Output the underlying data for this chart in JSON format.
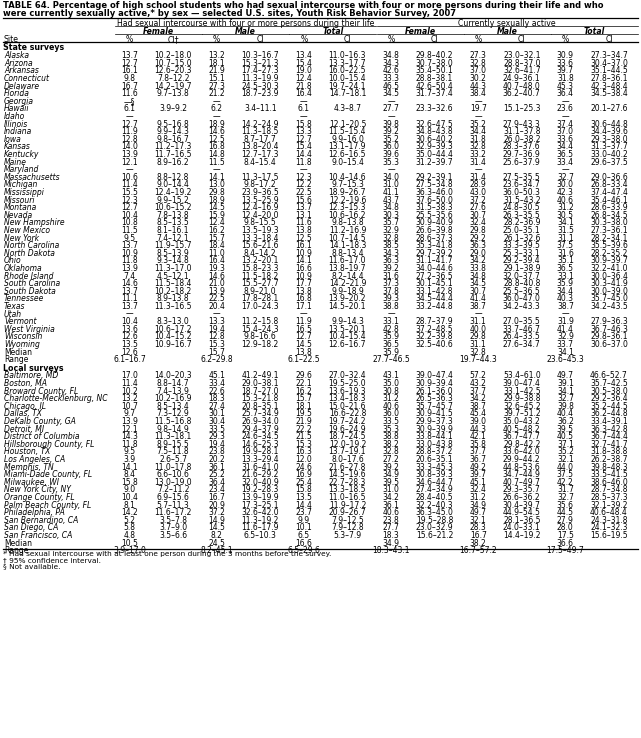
{
  "title_line1": "TABLE 64. Percentage of high school students who had sexual intercourse with four or more persons during their life and who",
  "title_line2": "were currently sexually active,* by sex — selected U.S. sites, Youth Risk Behavior Survey, 2007",
  "header1": "Had sexual intercourse with four or more persons during their life",
  "header2": "Currently sexually active",
  "col_headers": [
    "Female",
    "Male",
    "Total",
    "Female",
    "Male",
    "Total"
  ],
  "sub_headers": [
    "%",
    "CI†",
    "%",
    "CI",
    "%",
    "CI",
    "%",
    "CI",
    "%",
    "CI",
    "%",
    "CI"
  ],
  "site_col": "Site",
  "section1": "State surveys",
  "state_rows": [
    [
      "Alaska",
      "13.7",
      "10.2–18.0",
      "13.2",
      "10.3–16.7",
      "13.4",
      "11.0–16.3",
      "34.8",
      "29.8–40.2",
      "27.3",
      "23.0–32.1",
      "30.9",
      "27.3–34.7"
    ],
    [
      "Arizona",
      "12.7",
      "10.7–15.0",
      "18.1",
      "15.3–21.3",
      "15.4",
      "13.3–17.7",
      "34.3",
      "30.7–38.0",
      "32.8",
      "28.8–37.0",
      "33.6",
      "30.4–37.0"
    ],
    [
      "Arkansas",
      "16.1",
      "12.6–20.3",
      "21.9",
      "17.4–27.3",
      "19.0",
      "16.0–22.5",
      "42.6",
      "35.4–50.1",
      "37.0",
      "32.6–41.7",
      "39.7",
      "35.1–44.5"
    ],
    [
      "Connecticut",
      "9.8",
      "7.8–12.2",
      "15.1",
      "11.3–19.9",
      "12.4",
      "10.0–15.4",
      "33.3",
      "28.8–38.1",
      "30.2",
      "24.9–36.1",
      "31.8",
      "27.8–36.1"
    ],
    [
      "Delaware",
      "16.7",
      "14.2–19.7",
      "27.3",
      "24.5–30.3",
      "21.8",
      "19.7–24.1",
      "46.5",
      "42.6–50.4",
      "44.3",
      "40.7–48.0",
      "45.3",
      "42.3–48.4"
    ],
    [
      "Florida",
      "11.6",
      "9.7–13.8",
      "21.2",
      "18.7–23.9",
      "16.4",
      "14.7–18.1",
      "34.5",
      "31.7–37.4",
      "38.4",
      "36.2–40.7",
      "36.4",
      "34.5–38.4"
    ],
    [
      "Georgia",
      "—§",
      "",
      "—",
      "",
      "—",
      "",
      "—",
      "",
      "—",
      "",
      "—",
      ""
    ],
    [
      "Hawaii",
      "6.1",
      "3.9–9.2",
      "6.2",
      "3.4–11.1",
      "6.1",
      "4.3–8.7",
      "27.7",
      "23.3–32.6",
      "19.7",
      "15.1–25.3",
      "23.6",
      "20.1–27.6"
    ],
    [
      "Idaho",
      "—",
      "",
      "—",
      "",
      "—",
      "",
      "—",
      "",
      "—",
      "",
      "—",
      ""
    ],
    [
      "Illinois",
      "12.7",
      "9.5–16.8",
      "18.9",
      "14.2–24.9",
      "15.8",
      "12.1–20.5",
      "39.8",
      "32.6–47.5",
      "35.2",
      "27.9–43.3",
      "37.4",
      "30.6–44.8"
    ],
    [
      "Indiana",
      "11.9",
      "9.9–14.3",
      "14.6",
      "11.3–18.5",
      "13.3",
      "11.5–15.4",
      "39.2",
      "34.8–43.8",
      "34.4",
      "31.1–37.8",
      "37.0",
      "34.4–39.6"
    ],
    [
      "Iowa",
      "12.8",
      "9.8–16.7",
      "12.5",
      "8.7–17.7",
      "12.7",
      "9.9–16.0",
      "35.2",
      "30.6–40.2",
      "31.8",
      "26.0–38.2",
      "33.6",
      "29.3–38.0"
    ],
    [
      "Kansas",
      "14.0",
      "11.2–17.3",
      "16.8",
      "13.8–20.4",
      "15.4",
      "13.1–17.9",
      "36.0",
      "32.9–39.3",
      "32.8",
      "28.3–37.6",
      "34.4",
      "31.3–37.7"
    ],
    [
      "Kentucky",
      "13.9",
      "11.7–16.5",
      "14.8",
      "12.7–17.3",
      "14.4",
      "12.6–16.5",
      "39.6",
      "35.0–44.4",
      "33.2",
      "29.7–36.9",
      "36.5",
      "33.0–40.2"
    ],
    [
      "Maine",
      "12.1",
      "8.9–16.2",
      "11.5",
      "8.4–15.4",
      "11.8",
      "9.0–15.4",
      "35.3",
      "31.2–39.7",
      "31.4",
      "25.6–37.9",
      "33.4",
      "29.6–37.5"
    ],
    [
      "Maryland",
      "—",
      "",
      "—",
      "",
      "—",
      "",
      "—",
      "",
      "—",
      "",
      "—",
      ""
    ],
    [
      "Massachusetts",
      "10.6",
      "8.8–12.8",
      "14.1",
      "11.3–17.5",
      "12.3",
      "10.4–14.6",
      "34.0",
      "29.2–39.1",
      "31.4",
      "27.5–35.5",
      "32.7",
      "29.0–36.6"
    ],
    [
      "Michigan",
      "11.4",
      "9.0–14.4",
      "13.0",
      "9.8–17.2",
      "12.2",
      "9.7–15.3",
      "31.0",
      "27.5–34.8",
      "28.9",
      "23.6–34.7",
      "30.0",
      "26.8–33.4"
    ],
    [
      "Mississippi",
      "15.5",
      "12.4–19.2",
      "29.8",
      "23.9–36.5",
      "22.5",
      "18.9–26.7",
      "41.1",
      "36.3–46.0",
      "43.0",
      "36.0–50.3",
      "42.3",
      "37.4–47.4"
    ],
    [
      "Missouri",
      "12.3",
      "9.9–15.2",
      "18.9",
      "13.5–25.9",
      "15.6",
      "12.2–19.6",
      "43.7",
      "37.6–50.0",
      "37.2",
      "31.5–43.2",
      "40.6",
      "35.4–46.1"
    ],
    [
      "Montana",
      "12.7",
      "10.6–15.2",
      "14.5",
      "12.4–16.9",
      "13.7",
      "12.3–15.3",
      "34.8",
      "31.5–38.3",
      "27.6",
      "24.8–30.5",
      "31.2",
      "28.6–33.9"
    ],
    [
      "Nevada",
      "10.4",
      "7.8–13.8",
      "15.9",
      "12.4–20.0",
      "13.1",
      "10.6–16.2",
      "30.3",
      "25.5–35.6",
      "30.7",
      "26.3–35.5",
      "30.5",
      "26.8–34.5"
    ],
    [
      "New Hampshire",
      "10.8",
      "8.5–13.5",
      "12.4",
      "9.8–15.5",
      "11.6",
      "9.8–13.8",
      "35.7",
      "30.9–40.9",
      "32.4",
      "28.2–36.9",
      "34.1",
      "30.3–38.0"
    ],
    [
      "New Mexico",
      "11.5",
      "8.1–16.1",
      "16.2",
      "13.5–19.3",
      "13.8",
      "11.2–16.9",
      "32.9",
      "26.6–39.8",
      "29.8",
      "25.0–35.1",
      "31.5",
      "27.3–36.1"
    ],
    [
      "New York",
      "9.5",
      "7.4–12.1",
      "15.7",
      "13.3–18.4",
      "12.5",
      "10.7–14.5",
      "32.8",
      "28.6–37.3",
      "29.2",
      "26.1–32.6",
      "31.1",
      "28.2–34.1"
    ],
    [
      "North Carolina",
      "13.7",
      "11.9–15.7",
      "18.4",
      "15.6–21.6",
      "16.1",
      "14.1–18.3",
      "38.5",
      "35.3–41.8",
      "36.3",
      "33.3–39.5",
      "37.5",
      "35.5–39.6"
    ],
    [
      "North Dakota",
      "10.9",
      "8.5–13.9",
      "11.0",
      "8.4–14.2",
      "10.9",
      "8.8–13.4",
      "34.3",
      "29.7–39.2",
      "29.0",
      "25.3–33.1",
      "31.6",
      "28.2–35.2"
    ],
    [
      "Ohio",
      "11.8",
      "9.3–14.8",
      "16.4",
      "13.2–20.1",
      "14.1",
      "11.6–17.0",
      "36.3",
      "31.1–41.7",
      "34.2",
      "29.2–39.4",
      "35.1",
      "30.9–39.7"
    ],
    [
      "Oklahoma",
      "13.9",
      "11.3–17.0",
      "19.3",
      "15.8–23.3",
      "16.6",
      "13.8–19.7",
      "39.2",
      "34.0–44.6",
      "33.8",
      "29.1–38.9",
      "36.5",
      "32.2–41.0"
    ],
    [
      "Rhode Island",
      "7.4",
      "4.5–12.1",
      "14.6",
      "11.5–18.2",
      "10.9",
      "8.2–14.4",
      "31.6",
      "27.2–36.5",
      "34.8",
      "32.0–37.7",
      "33.1",
      "30.0–36.4"
    ],
    [
      "South Carolina",
      "14.6",
      "11.5–18.4",
      "21.0",
      "15.5–27.7",
      "17.7",
      "14.2–21.9",
      "37.3",
      "30.1–45.1",
      "34.5",
      "28.8–40.8",
      "35.9",
      "30.3–41.9"
    ],
    [
      "South Dakota",
      "13.7",
      "10.2–18.2",
      "13.9",
      "8.9–21.0",
      "13.8",
      "9.9–18.9",
      "37.8",
      "33.1–42.8",
      "30.7",
      "25.5–36.5",
      "34.4",
      "30.0–39.0"
    ],
    [
      "Tennessee",
      "11.1",
      "8.9–13.8",
      "22.5",
      "17.8–28.1",
      "16.8",
      "13.9–20.2",
      "39.3",
      "34.5–44.4",
      "41.4",
      "36.0–47.0",
      "40.3",
      "35.7–45.0"
    ],
    [
      "Texas",
      "13.7",
      "11.3–16.5",
      "20.4",
      "17.0–24.3",
      "17.1",
      "14.5–20.1",
      "38.8",
      "33.2–44.8",
      "38.7",
      "34.2–43.3",
      "38.7",
      "34.2–43.5"
    ],
    [
      "Utah",
      "—",
      "",
      "—",
      "",
      "—",
      "",
      "—",
      "",
      "—",
      "",
      "—",
      ""
    ],
    [
      "Vermont",
      "10.4",
      "8.3–13.0",
      "13.3",
      "11.2–15.8",
      "11.9",
      "9.9–14.3",
      "33.1",
      "28.7–37.9",
      "31.1",
      "27.0–35.5",
      "31.9",
      "27.9–36.3"
    ],
    [
      "West Virginia",
      "13.6",
      "10.6–17.2",
      "19.4",
      "15.4–24.3",
      "16.5",
      "13.5–20.1",
      "42.8",
      "37.2–48.5",
      "40.0",
      "33.7–46.7",
      "41.4",
      "36.7–46.3"
    ],
    [
      "Wisconsin",
      "12.6",
      "10.4–15.2",
      "12.8",
      "9.8–16.6",
      "12.7",
      "10.4–15.4",
      "35.9",
      "32.2–39.8",
      "29.8",
      "26.4–33.5",
      "32.9",
      "29.8–36.1"
    ],
    [
      "Wyoming",
      "13.5",
      "10.9–16.7",
      "15.3",
      "12.9–18.2",
      "14.5",
      "12.6–16.7",
      "36.5",
      "32.5–40.6",
      "31.1",
      "27.6–34.7",
      "33.7",
      "30.6–37.0"
    ]
  ],
  "state_median": [
    "Median",
    "12.6",
    "",
    "15.7",
    "",
    "13.8",
    "",
    "35.9",
    "",
    "32.8",
    "",
    "34.1",
    ""
  ],
  "state_range": [
    "Range",
    "6.1–16.7",
    "",
    "6.2–29.8",
    "",
    "6.1–22.5",
    "",
    "27.7–46.5",
    "",
    "19.7–44.3",
    "",
    "23.6–45.3",
    ""
  ],
  "section2": "Local surveys",
  "local_rows": [
    [
      "Baltimore, MD",
      "17.0",
      "14.0–20.3",
      "45.1",
      "41.2–49.1",
      "29.6",
      "27.0–32.4",
      "43.1",
      "39.0–47.4",
      "57.2",
      "53.4–61.0",
      "49.7",
      "46.6–52.7"
    ],
    [
      "Boston, MA",
      "11.4",
      "8.8–14.7",
      "33.4",
      "29.0–38.1",
      "22.1",
      "19.5–25.0",
      "35.0",
      "30.9–39.4",
      "43.2",
      "39.0–47.4",
      "39.1",
      "35.7–42.5"
    ],
    [
      "Broward County, FL",
      "10.2",
      "7.4–13.9",
      "22.6",
      "18.7–27.0",
      "16.2",
      "13.6–19.3",
      "30.8",
      "26.1–36.0",
      "37.7",
      "33.1–42.5",
      "34.1",
      "30.5–38.0"
    ],
    [
      "Charlotte-Mecklenburg, NC",
      "13.2",
      "10.2–16.9",
      "18.3",
      "15.3–21.8",
      "15.7",
      "13.4–18.3",
      "31.2",
      "26.5–36.3",
      "34.2",
      "29.9–38.8",
      "32.7",
      "29.2–36.4"
    ],
    [
      "Chicago, IL",
      "10.7",
      "8.5–13.4",
      "27.4",
      "20.8–35.1",
      "18.1",
      "15.0–21.6",
      "40.6",
      "35.7–45.7",
      "38.7",
      "32.6–45.2",
      "39.8",
      "35.2–44.5"
    ],
    [
      "Dallas, TX",
      "9.7",
      "7.3–12.9",
      "30.1",
      "25.7–34.9",
      "19.5",
      "16.6–22.8",
      "36.0",
      "30.9–41.5",
      "45.4",
      "39.7–51.2",
      "40.4",
      "36.2–44.8"
    ],
    [
      "DeKalb County, GA",
      "13.9",
      "11.5–16.8",
      "30.4",
      "26.9–34.0",
      "21.9",
      "19.7–24.2",
      "33.5",
      "29.9–37.3",
      "39.0",
      "35.0–43.2",
      "36.2",
      "33.4–39.1"
    ],
    [
      "Detroit, MI",
      "12.1",
      "9.8–14.9",
      "33.5",
      "29.4–37.9",
      "22.2",
      "19.6–24.9",
      "35.3",
      "30.9–39.9",
      "44.3",
      "40.5–48.2",
      "39.5",
      "36.3–42.8"
    ],
    [
      "District of Columbia",
      "14.3",
      "11.3–18.1",
      "29.3",
      "24.6–34.5",
      "21.5",
      "18.7–24.5",
      "38.8",
      "33.8–44.1",
      "42.1",
      "36.7–47.7",
      "40.5",
      "36.7–44.4"
    ],
    [
      "Hillsborough County, FL",
      "11.8",
      "8.9–15.5",
      "19.4",
      "14.6–25.3",
      "15.3",
      "12.0–19.2",
      "38.2",
      "33.0–43.8",
      "35.8",
      "29.8–42.2",
      "37.1",
      "32.7–41.7"
    ],
    [
      "Houston, TX",
      "9.5",
      "7.5–11.8",
      "23.8",
      "19.9–28.1",
      "16.3",
      "13.7–19.1",
      "32.8",
      "28.8–37.2",
      "37.7",
      "33.6–42.0",
      "35.2",
      "31.8–38.8"
    ],
    [
      "Los Angeles, CA",
      "3.9",
      "2.6–5.7",
      "20.2",
      "13.3–29.4",
      "12.0",
      "8.0–17.6",
      "27.2",
      "20.6–35.1",
      "36.7",
      "29.9–44.2",
      "32.1",
      "26.2–38.7"
    ],
    [
      "Memphis, TN",
      "14.1",
      "11.0–17.8",
      "36.1",
      "31.6–41.0",
      "24.6",
      "21.6–27.8",
      "39.2",
      "33.3–45.3",
      "49.2",
      "44.8–53.6",
      "44.0",
      "39.8–48.3"
    ],
    [
      "Miami-Dade County, FL",
      "8.4",
      "6.6–10.6",
      "25.2",
      "21.6–29.2",
      "16.9",
      "14.5–19.6",
      "34.9",
      "30.8–39.3",
      "39.7",
      "34.7–44.9",
      "37.5",
      "33.5–41.5"
    ],
    [
      "Milwaukee, WI",
      "15.8",
      "13.0–19.0",
      "36.4",
      "32.0–40.9",
      "25.4",
      "22.7–28.3",
      "39.5",
      "34.6–44.7",
      "45.1",
      "40.7–49.7",
      "42.2",
      "38.6–46.0"
    ],
    [
      "New York City, NY",
      "9.0",
      "7.2–11.2",
      "23.4",
      "19.2–28.3",
      "15.8",
      "13.3–18.5",
      "31.0",
      "27.4–34.9",
      "32.4",
      "29.3–35.7",
      "31.7",
      "28.7–34.8"
    ],
    [
      "Orange County, FL",
      "10.4",
      "6.9–15.6",
      "16.7",
      "13.9–19.9",
      "13.5",
      "11.0–16.5",
      "34.2",
      "28.4–40.5",
      "31.2",
      "26.6–36.2",
      "32.7",
      "28.5–37.3"
    ],
    [
      "Palm Beach County, FL",
      "8.1",
      "5.7–11.3",
      "20.9",
      "17.3–25.1",
      "14.4",
      "11.9–17.2",
      "36.1",
      "32.2–40.3",
      "34.9",
      "30.4–39.7",
      "35.6",
      "32.1–39.2"
    ],
    [
      "Philadelphia, PA",
      "14.2",
      "11.6–17.2",
      "37.2",
      "32.6–42.0",
      "23.7",
      "20.9–26.7",
      "40.6",
      "36.3–45.0",
      "49.7",
      "44.9–54.5",
      "44.5",
      "40.6–48.4"
    ],
    [
      "San Bernardino, CA",
      "5.2",
      "3.5–7.8",
      "14.9",
      "11.3–19.2",
      "9.9",
      "7.9–12.5",
      "23.8",
      "19.5–28.8",
      "32.1",
      "28.1–36.5",
      "27.9",
      "24.3–31.8"
    ],
    [
      "San Diego, CA",
      "5.8",
      "3.7–9.0",
      "14.5",
      "11.6–17.9",
      "10.1",
      "7.9–12.8",
      "27.7",
      "23.0–32.9",
      "28.3",
      "24.0–33.1",
      "28.0",
      "24.1–32.3"
    ],
    [
      "San Francisco, CA",
      "4.8",
      "3.5–6.6",
      "8.2",
      "6.5–10.3",
      "6.5",
      "5.3–7.9",
      "18.3",
      "15.6–21.2",
      "16.7",
      "14.4–19.2",
      "17.5",
      "15.6–19.5"
    ]
  ],
  "local_median": [
    "Median",
    "10.5",
    "",
    "24.5",
    "",
    "16.6",
    "",
    "34.9",
    "",
    "38.2",
    "",
    "36.6",
    ""
  ],
  "local_range": [
    "Range",
    "3.9–17.0",
    "",
    "8.2–45.1",
    "",
    "6.5–29.6",
    "",
    "18.3–43.1",
    "",
    "16.7–57.2",
    "",
    "17.5–49.7",
    ""
  ],
  "footnotes": [
    "* Had sexual intercourse with at least one person during the 3 months before the survey.",
    "† 95% confidence interval.",
    "§ Not available."
  ]
}
